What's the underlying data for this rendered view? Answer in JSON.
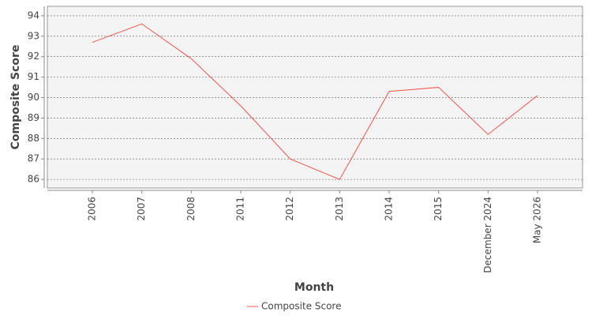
{
  "chart_data": {
    "type": "line",
    "x_label": "Month",
    "y_label": "Composite Score",
    "categories": [
      "2006",
      "2007",
      "2008",
      "2011",
      "2012",
      "2013",
      "2014",
      "2015",
      "December 2024",
      "May 2026"
    ],
    "series": [
      {
        "name": "Composite Score",
        "color": "#f0544c",
        "values": [
          92.7,
          93.6,
          91.9,
          89.6,
          87.0,
          86.0,
          90.3,
          90.5,
          88.2,
          90.1
        ]
      }
    ],
    "ylim": [
      85.58,
      94.46
    ],
    "yticks": [
      86,
      87,
      88,
      89,
      90,
      91,
      92,
      93,
      94
    ],
    "grid": true,
    "legend": "bottom"
  }
}
